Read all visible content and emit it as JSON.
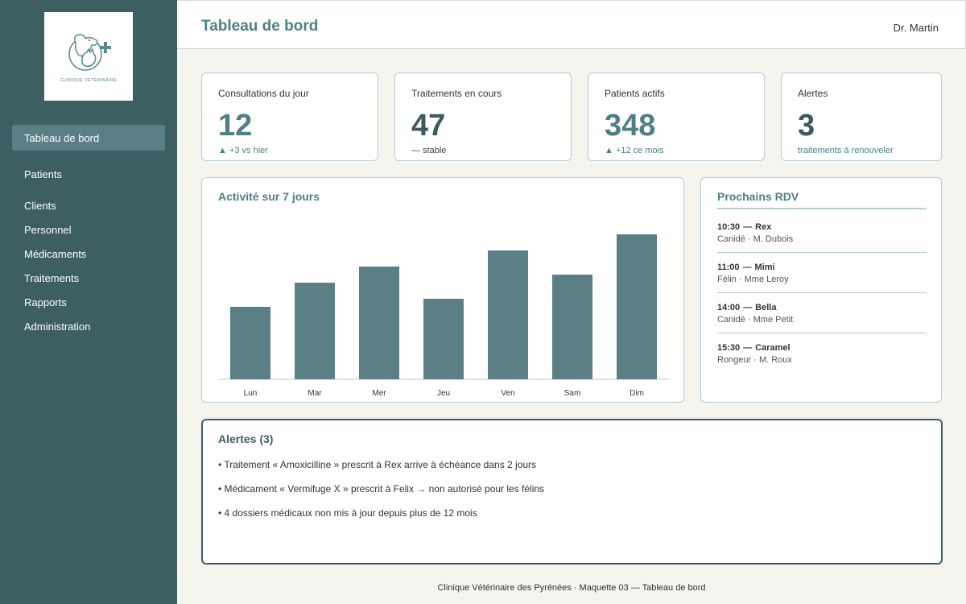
{
  "logo": {
    "text": "CLINIQUE VÉTÉRINAIRE"
  },
  "sidebar": {
    "items": [
      {
        "label": "Tableau de bord",
        "active": true
      },
      {
        "label": "Patients"
      },
      {
        "label": "Clients"
      },
      {
        "label": "Personnel"
      },
      {
        "label": "Médicaments"
      },
      {
        "label": "Traitements"
      },
      {
        "label": "Rapports"
      },
      {
        "label": "Administration"
      }
    ]
  },
  "header": {
    "title": "Tableau de bord",
    "user": "Dr. Martin"
  },
  "stats": [
    {
      "label": "Consultations du jour",
      "value": "12",
      "sub": "▲ +3 vs hier"
    },
    {
      "label": "Traitements en cours",
      "value": "47",
      "sub": "— stable"
    },
    {
      "label": "Patients actifs",
      "value": "348",
      "sub": "▲ +12 ce mois"
    },
    {
      "label": "Alertes",
      "value": "3",
      "sub": "traitements à renouveler"
    }
  ],
  "activity": {
    "title": "Activité sur 7 jours"
  },
  "chart_data": {
    "type": "bar",
    "title": "Activité sur 7 jours",
    "categories": [
      "Lun",
      "Mar",
      "Mer",
      "Jeu",
      "Ven",
      "Sam",
      "Dim"
    ],
    "values": [
      9,
      12,
      14,
      10,
      16,
      13,
      18
    ],
    "ylim": [
      0,
      20
    ],
    "grid": false,
    "color": "#5a7f84"
  },
  "rdv": {
    "title": "Prochains RDV",
    "items": [
      {
        "time": "10:30",
        "name": "Rex",
        "details": "Canidé · M. Dubois"
      },
      {
        "time": "11:00",
        "name": "Mimi",
        "details": "Félin · Mme Leroy"
      },
      {
        "time": "14:00",
        "name": "Bella",
        "details": "Canidé · Mme Petit"
      },
      {
        "time": "15:30",
        "name": "Caramel",
        "details": "Rongeur · M. Roux"
      }
    ]
  },
  "alerts": {
    "title": "Alertes (3)",
    "items": [
      "• Traitement « Amoxicilline » prescrit à Rex arrive à échéance dans 2 jours",
      "• Médicament « Vermifuge X » prescrit à Felix → non autorisé pour les félins",
      "• 4 dossiers médicaux non mis à jour depuis plus de 12 mois"
    ]
  },
  "footer": {
    "text": "Clinique Vétérinaire des Pyrénées · Maquette 03 — Tableau de bord"
  },
  "colors": {
    "sidebar": "#3e5f62",
    "accent": "#4d7f85",
    "bar": "#5a7f84",
    "background": "#f6f4ef"
  }
}
